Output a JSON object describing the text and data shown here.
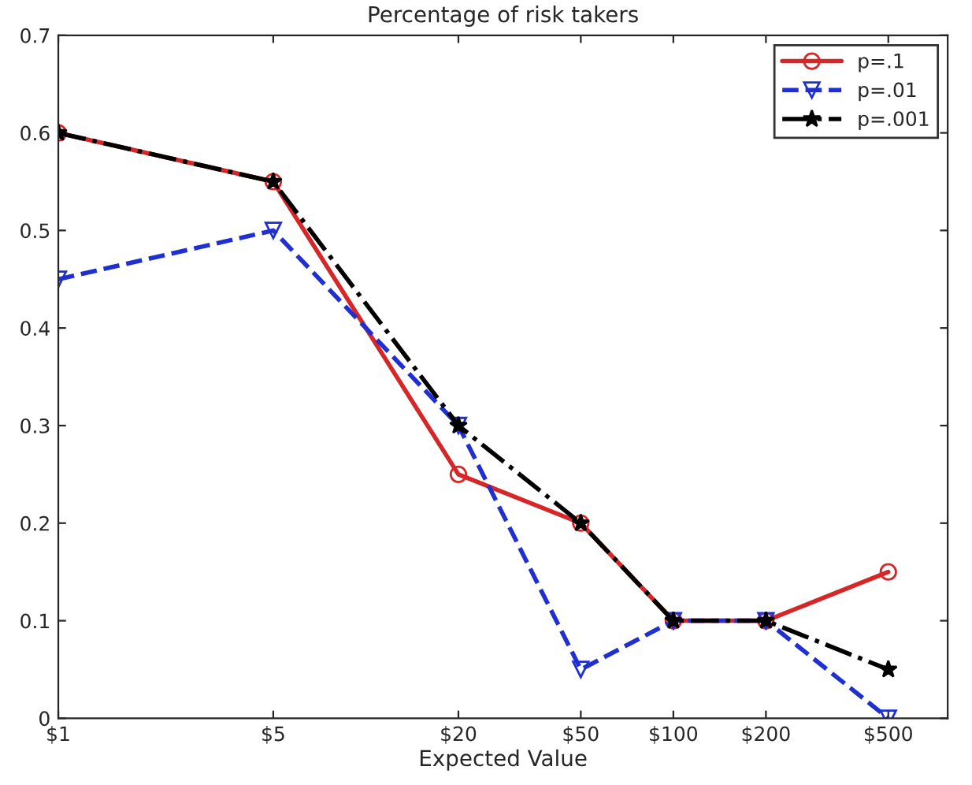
{
  "chart_data": {
    "type": "line",
    "title": "Percentage of risk takers",
    "xlabel": "Expected Value",
    "x": [
      1,
      5,
      20,
      50,
      100,
      200,
      500
    ],
    "log": "x",
    "xlim": [
      1,
      780
    ],
    "xticks": [
      {
        "value": 1,
        "label": "$1"
      },
      {
        "value": 5,
        "label": "$5"
      },
      {
        "value": 20,
        "label": "$20"
      },
      {
        "value": 50,
        "label": "$50"
      },
      {
        "value": 100,
        "label": "$100"
      },
      {
        "value": 200,
        "label": "$200"
      },
      {
        "value": 500,
        "label": "$500"
      }
    ],
    "ylim": [
      0,
      0.7
    ],
    "yticks": [
      {
        "value": 0,
        "label": "0"
      },
      0.1,
      0.2,
      0.3,
      0.4,
      0.5,
      0.6,
      0.7
    ],
    "grid": false,
    "legend": "top right",
    "series": [
      {
        "name": "p=.1",
        "color": "#d62728",
        "marker": "circle",
        "line_style": "solid",
        "values": [
          0.6,
          0.55,
          0.25,
          0.2,
          0.1,
          0.1,
          0.15
        ]
      },
      {
        "name": "p=.01",
        "color": "#1f2fd0",
        "marker": "triangle",
        "line_style": "dashed",
        "values": [
          0.45,
          0.5,
          0.3,
          0.05,
          0.1,
          0.1,
          0.0
        ]
      },
      {
        "name": "p=.001",
        "color": "#000000",
        "marker": "star",
        "line_style": "dashdot",
        "values": [
          0.6,
          0.55,
          0.3,
          0.2,
          0.1,
          0.1,
          0.05
        ]
      }
    ]
  }
}
